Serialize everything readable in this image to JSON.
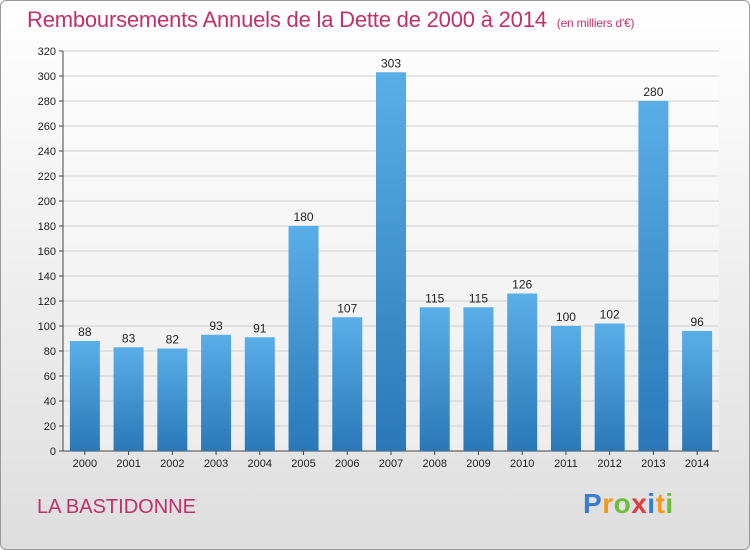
{
  "title": "Remboursements Annuels de la Dette de 2000 à 2014",
  "unit": "(en milliers d'€)",
  "commune": "LA BASTIDONNE",
  "logo": {
    "text": "Proxiti",
    "letters": [
      "P",
      "r",
      "o",
      "x",
      "i",
      "t",
      "i"
    ],
    "colors": [
      "#3a7bd5",
      "#f29a1a",
      "#6bbf3a",
      "#e23c3c",
      "#3a7bd5",
      "#f29a1a",
      "#6bbf3a"
    ]
  },
  "colors": {
    "bar_light": "#5aaee8",
    "bar_dark": "#2a78b8",
    "title": "#c0306a"
  },
  "chart_data": {
    "type": "bar",
    "title": "Remboursements Annuels de la Dette de 2000 à 2014",
    "categories": [
      "2000",
      "2001",
      "2002",
      "2003",
      "2004",
      "2005",
      "2006",
      "2007",
      "2008",
      "2009",
      "2010",
      "2011",
      "2012",
      "2013",
      "2014"
    ],
    "values": [
      88,
      83,
      82,
      93,
      91,
      180,
      107,
      303,
      115,
      115,
      126,
      100,
      102,
      280,
      96
    ],
    "ylim": [
      0,
      320
    ],
    "yticks": [
      0,
      20,
      40,
      60,
      80,
      100,
      120,
      140,
      160,
      180,
      200,
      220,
      240,
      260,
      280,
      300,
      320
    ],
    "grid": true,
    "xlabel": "",
    "ylabel": ""
  }
}
